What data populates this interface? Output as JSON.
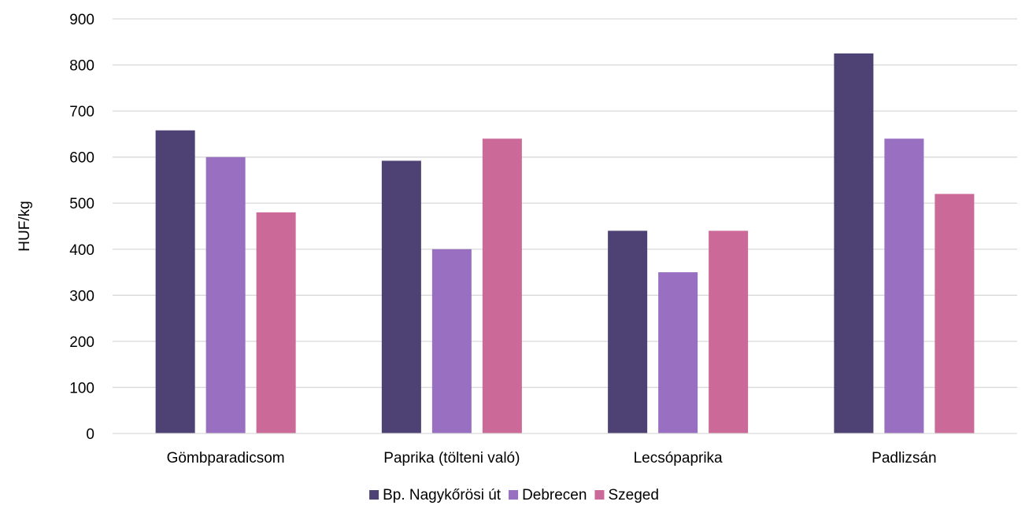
{
  "chart_data": {
    "type": "bar",
    "title": "",
    "xlabel": "",
    "ylabel": "HUF/kg",
    "ylim": [
      0,
      900
    ],
    "yticks": [
      0,
      100,
      200,
      300,
      400,
      500,
      600,
      700,
      800,
      900
    ],
    "grid": true,
    "legend_position": "bottom",
    "categories": [
      "Gömbparadicsom",
      "Paprika (tölteni való)",
      "Lecsópaprika",
      "Padlizsán"
    ],
    "series": [
      {
        "name": "Bp. Nagykőrösi út",
        "color": "#4e4173",
        "values": [
          658,
          592,
          440,
          825
        ]
      },
      {
        "name": "Debrecen",
        "color": "#9970c1",
        "values": [
          600,
          400,
          350,
          640
        ]
      },
      {
        "name": "Szeged",
        "color": "#cb6a99",
        "values": [
          480,
          640,
          440,
          520
        ]
      }
    ]
  }
}
